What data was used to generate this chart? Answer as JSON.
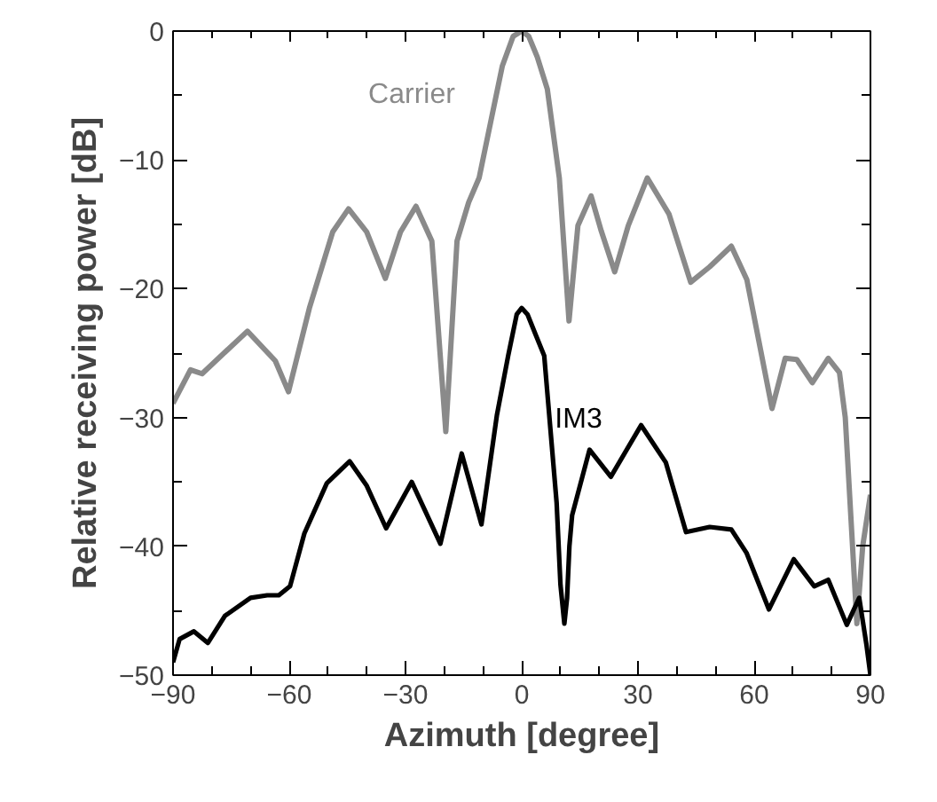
{
  "chart_data": {
    "type": "line",
    "xlabel": "Azimuth [degree]",
    "ylabel": "Relative receiving power [dB]",
    "xlim": [
      -90,
      90
    ],
    "ylim": [
      -50,
      0
    ],
    "xticks": [
      -90,
      -60,
      -30,
      0,
      30,
      60,
      90
    ],
    "yticks": [
      -50,
      -40,
      -30,
      -20,
      -10,
      0
    ],
    "grid": false,
    "legend": false,
    "marker": "none",
    "line_style": "solid",
    "series": [
      {
        "name": "Carrier",
        "color": "#8a8a8a",
        "x": [
          -90,
          -85.5,
          -82.5,
          -70.8,
          -63.6,
          -60.2,
          -54.8,
          -48.8,
          -44.7,
          -40,
          -35.2,
          -31.3,
          -27.3,
          -23.2,
          -19.6,
          -16.7,
          -13.7,
          -11,
          -7.9,
          -5,
          -2.2,
          0,
          1.8,
          4,
          6.6,
          9.7,
          12.2,
          14.5,
          17.9,
          20.5,
          24,
          27.5,
          32.4,
          38,
          43.6,
          48.5,
          54.1,
          58.1,
          64.6,
          68,
          71,
          75,
          79.1,
          82,
          83.5,
          85,
          86.5,
          88,
          90
        ],
        "values": [
          -28.9,
          -26.3,
          -26.6,
          -23.3,
          -25.6,
          -28,
          -21.5,
          -15.6,
          -13.8,
          -15.6,
          -19.2,
          -15.6,
          -13.6,
          -16.3,
          -31.1,
          -16.3,
          -13.3,
          -11.4,
          -6.9,
          -2.7,
          -0.4,
          0,
          -0.4,
          -2,
          -4.5,
          -11.4,
          -22.5,
          -15.1,
          -12.8,
          -15.5,
          -18.7,
          -15.1,
          -11.4,
          -14.2,
          -19.5,
          -18.3,
          -16.7,
          -19.3,
          -29.3,
          -25.4,
          -25.5,
          -27.3,
          -25.4,
          -26.5,
          -30,
          -38,
          -46,
          -40,
          -36
        ]
      },
      {
        "name": "IM3",
        "color": "#000000",
        "x": [
          -90,
          -88.3,
          -84.6,
          -81,
          -76.6,
          -70,
          -65.7,
          -62.7,
          -59.8,
          -56.1,
          -50.3,
          -44.4,
          -40,
          -35,
          -28.4,
          -21,
          -15.5,
          -10.4,
          -6.4,
          -3.5,
          -1.3,
          0,
          1.5,
          3.5,
          5.8,
          9,
          10,
          11,
          11.7,
          12.3,
          13,
          17.5,
          23,
          30.8,
          37.2,
          42.4,
          48.5,
          54.1,
          58,
          63.8,
          70.2,
          75.5,
          79.1,
          83.9,
          87.1,
          89,
          90
        ],
        "values": [
          -49,
          -47.2,
          -46.6,
          -47.5,
          -45.4,
          -44,
          -43.8,
          -43.8,
          -43.1,
          -39,
          -35.1,
          -33.4,
          -35.3,
          -38.6,
          -35,
          -39.8,
          -32.8,
          -38.3,
          -29.8,
          -25.2,
          -22,
          -21.5,
          -22,
          -23.5,
          -25.2,
          -36.6,
          -43,
          -46,
          -44,
          -40,
          -37.6,
          -32.5,
          -34.6,
          -30.6,
          -33.5,
          -38.9,
          -38.5,
          -38.7,
          -40.5,
          -44.9,
          -41,
          -43.1,
          -42.6,
          -46.1,
          -44,
          -47.7,
          -50
        ]
      }
    ]
  }
}
